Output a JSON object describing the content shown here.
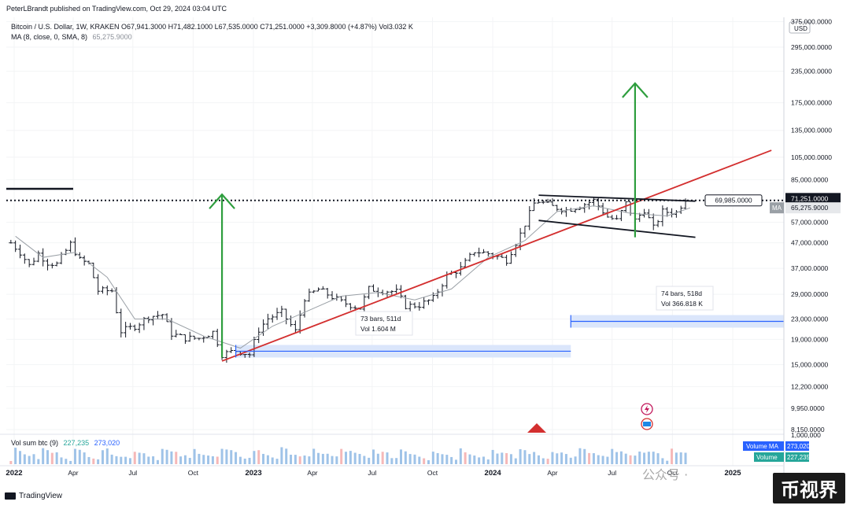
{
  "header": {
    "publisher": "PeterLBrandt published on TradingView.com, Oct 29, 2024 03:04 UTC",
    "symbol_line": "Bitcoin / U.S. Dollar, 1W, KRAKEN  O67,941.3000  H71,482.1000  L67,535.0000  C71,251.0000  +3,309.8000 (+4.87%)  Vol3.032 K",
    "ma_line_label": "MA (8, close, 0, SMA, 8)",
    "ma_line_value": "65,275.9000",
    "volume_line_label": "Vol sum btc (9)",
    "volume_line_v1": "227,235",
    "volume_line_v2": "273,020"
  },
  "footer": {
    "brand": "TradingView",
    "watermark_cn": "币视界",
    "watermark_public": "公众号 ·"
  },
  "colors": {
    "up": "#131722",
    "ma_line": "#9aa0a6",
    "trendline": "#d32f2f",
    "arrow": "#2e9e3e",
    "measure": "#2962ff",
    "measure_fill": "#dbe6fb",
    "volume": "#9fc3e8",
    "volume_red": "#f5b8b8"
  },
  "chart_data": {
    "type": "candlestick",
    "title": "Bitcoin / U.S. Dollar, 1W, KRAKEN",
    "currency": "USD",
    "y_scale": "log",
    "ylim": [
      7800,
      390000
    ],
    "y_ticks": [
      "375,000.0000",
      "295,000.0000",
      "235,000.0000",
      "175,000.0000",
      "135,000.0000",
      "105,000.0000",
      "85,000.0000",
      "57,000.0000",
      "47,000.0000",
      "37,000.0000",
      "29,000.0000",
      "23,000.0000",
      "19,000.0000",
      "15,000.0000",
      "12,200.0000",
      "9,950.0000",
      "8,150.0000"
    ],
    "y_tick_values": [
      375000,
      295000,
      235000,
      175000,
      135000,
      105000,
      85000,
      57000,
      47000,
      37000,
      29000,
      23000,
      19000,
      15000,
      12200,
      9950,
      8150
    ],
    "x_ticks": [
      "2022",
      "Apr",
      "Jul",
      "Oct",
      "2023",
      "Apr",
      "Jul",
      "Oct",
      "2024",
      "Apr",
      "Jul",
      "Oct",
      "2025"
    ],
    "x_tick_dates": [
      "2022-01-01",
      "2022-04-01",
      "2022-07-01",
      "2022-10-01",
      "2023-01-01",
      "2023-04-01",
      "2023-07-01",
      "2023-10-01",
      "2024-01-01",
      "2024-04-01",
      "2024-07-01",
      "2024-10-01",
      "2025-01-01"
    ],
    "price_labels": {
      "last_price": "71,251.0000",
      "ma_tag": "MA",
      "ma_value": "65,275.9000",
      "resistance": "69,985.0000"
    },
    "weekly_close_path": [
      [
        "2021-12-27",
        47000
      ],
      [
        "2022-01-10",
        43000
      ],
      [
        "2022-01-24",
        38000
      ],
      [
        "2022-02-07",
        42500
      ],
      [
        "2022-02-21",
        39000
      ],
      [
        "2022-03-07",
        38500
      ],
      [
        "2022-03-28",
        46500
      ],
      [
        "2022-04-11",
        40000
      ],
      [
        "2022-04-25",
        38500
      ],
      [
        "2022-05-09",
        30000
      ],
      [
        "2022-05-30",
        30000
      ],
      [
        "2022-06-13",
        20500
      ],
      [
        "2022-07-04",
        21500
      ],
      [
        "2022-07-25",
        23500
      ],
      [
        "2022-08-15",
        24000
      ],
      [
        "2022-08-29",
        20000
      ],
      [
        "2022-09-19",
        19200
      ],
      [
        "2022-10-10",
        19200
      ],
      [
        "2022-11-01",
        20400
      ],
      [
        "2022-11-14",
        16500
      ],
      [
        "2022-12-05",
        17100
      ],
      [
        "2022-12-26",
        16500
      ],
      [
        "2023-01-09",
        20800
      ],
      [
        "2023-01-23",
        23100
      ],
      [
        "2023-02-13",
        24500
      ],
      [
        "2023-03-06",
        20500
      ],
      [
        "2023-03-20",
        28000
      ],
      [
        "2023-04-10",
        30400
      ],
      [
        "2023-04-24",
        29000
      ],
      [
        "2023-05-15",
        27000
      ],
      [
        "2023-06-12",
        25500
      ],
      [
        "2023-06-26",
        30500
      ],
      [
        "2023-07-17",
        30000
      ],
      [
        "2023-08-07",
        29700
      ],
      [
        "2023-08-21",
        26000
      ],
      [
        "2023-09-11",
        26200
      ],
      [
        "2023-10-02",
        27900
      ],
      [
        "2023-10-23",
        34500
      ],
      [
        "2023-11-13",
        37000
      ],
      [
        "2023-12-04",
        43500
      ],
      [
        "2023-12-25",
        42500
      ],
      [
        "2024-01-22",
        40000
      ],
      [
        "2024-02-12",
        51000
      ],
      [
        "2024-03-04",
        68000
      ],
      [
        "2024-03-11",
        69500
      ],
      [
        "2024-04-01",
        66000
      ],
      [
        "2024-04-22",
        64000
      ],
      [
        "2024-05-13",
        66500
      ],
      [
        "2024-06-03",
        70000
      ],
      [
        "2024-06-24",
        60000
      ],
      [
        "2024-07-08",
        58000
      ],
      [
        "2024-07-22",
        68000
      ],
      [
        "2024-08-05",
        58000
      ],
      [
        "2024-08-19",
        64000
      ],
      [
        "2024-09-02",
        54000
      ],
      [
        "2024-09-16",
        63000
      ],
      [
        "2024-10-07",
        62500
      ],
      [
        "2024-10-21",
        71251
      ]
    ],
    "ma_line_path": [
      [
        "2022-01-03",
        50000
      ],
      [
        "2022-02-14",
        41000
      ],
      [
        "2022-04-04",
        43000
      ],
      [
        "2022-05-23",
        34000
      ],
      [
        "2022-07-04",
        23000
      ],
      [
        "2022-08-22",
        23000
      ],
      [
        "2022-10-17",
        19600
      ],
      [
        "2022-12-12",
        17500
      ],
      [
        "2023-01-30",
        21500
      ],
      [
        "2023-03-20",
        24500
      ],
      [
        "2023-05-15",
        28500
      ],
      [
        "2023-07-10",
        29500
      ],
      [
        "2023-09-04",
        27500
      ],
      [
        "2023-10-30",
        30500
      ],
      [
        "2023-12-25",
        41000
      ],
      [
        "2024-02-19",
        48000
      ],
      [
        "2024-04-08",
        63000
      ],
      [
        "2024-06-03",
        66500
      ],
      [
        "2024-07-29",
        62000
      ],
      [
        "2024-09-23",
        60500
      ],
      [
        "2024-10-28",
        65276
      ]
    ],
    "volume_sum_btc": {
      "label": "Vol sum btc (9)",
      "values": [
        "227,235",
        "273,020"
      ],
      "scale_top": "1,000,000",
      "tags": [
        "Volume MA",
        "Volume"
      ]
    },
    "annotations": [
      {
        "type": "trendline",
        "color": "red",
        "from": [
          "2022-11-14",
          15500
        ],
        "to": [
          "2025-03-01",
          112000
        ]
      },
      {
        "type": "horizontal_line",
        "style": "dotted",
        "value": 69985,
        "label": "69,985.0000"
      },
      {
        "type": "horizontal_line",
        "style": "solid",
        "from": "2021-12-20",
        "to": "2022-04-01",
        "value": 78000
      },
      {
        "type": "channel_upper",
        "from": [
          "2024-03-11",
          73500
        ],
        "to": [
          "2024-11-05",
          69500
        ]
      },
      {
        "type": "channel_lower",
        "from": [
          "2024-03-11",
          58000
        ],
        "to": [
          "2024-11-05",
          49500
        ]
      },
      {
        "type": "arrow_up",
        "color": "green",
        "from": [
          "2022-11-14",
          16000
        ],
        "to": [
          "2022-11-14",
          74000
        ]
      },
      {
        "type": "arrow_up",
        "color": "green",
        "from": [
          "2024-08-05",
          49500
        ],
        "to": [
          "2024-08-05",
          210000
        ]
      },
      {
        "type": "date_range",
        "from": [
          "2022-12-05",
          17000
        ],
        "to": [
          "2024-04-29",
          17000
        ],
        "label1": "73 bars, 511d",
        "label2": "Vol 1.604 M"
      },
      {
        "type": "date_range",
        "from": [
          "2024-04-29",
          22500
        ],
        "to": [
          "2025-09-30",
          22500
        ],
        "label1": "74 bars, 518d",
        "label2": "Vol 366.818 K"
      }
    ]
  }
}
